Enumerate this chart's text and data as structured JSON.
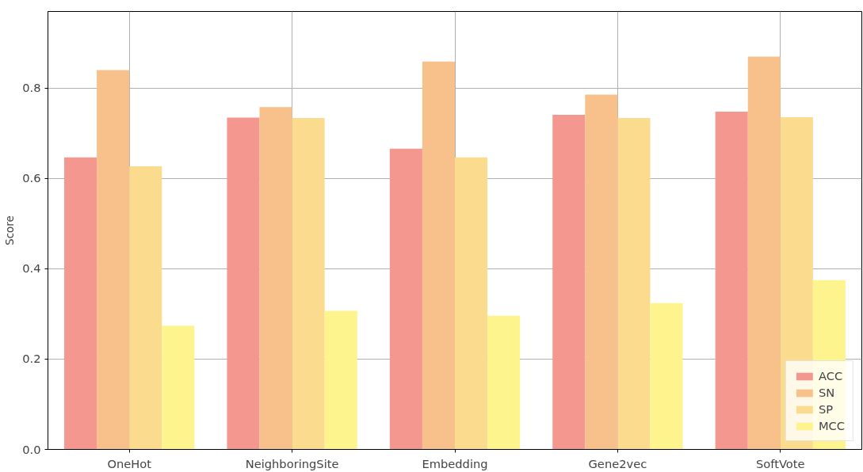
{
  "chart_data": {
    "type": "bar",
    "ylabel": "Score",
    "categories": [
      "OneHot",
      "NeighboringSite",
      "Embedding",
      "Gene2vec",
      "SoftVote"
    ],
    "series": [
      {
        "name": "ACC",
        "color": "#f4978e",
        "values": [
          0.647,
          0.735,
          0.666,
          0.741,
          0.748
        ]
      },
      {
        "name": "SN",
        "color": "#f8c08a",
        "values": [
          0.84,
          0.758,
          0.859,
          0.786,
          0.87
        ]
      },
      {
        "name": "SP",
        "color": "#fbdc8e",
        "values": [
          0.627,
          0.734,
          0.647,
          0.734,
          0.736
        ]
      },
      {
        "name": "MCC",
        "color": "#fdf48e",
        "values": [
          0.274,
          0.307,
          0.296,
          0.324,
          0.375
        ]
      }
    ],
    "ylim": [
      0,
      0.97
    ],
    "yticks": [
      {
        "value": 0,
        "label": "0.0"
      },
      0.2,
      0.4,
      0.6,
      0.8
    ],
    "grid": true,
    "legend": "bottom right"
  }
}
